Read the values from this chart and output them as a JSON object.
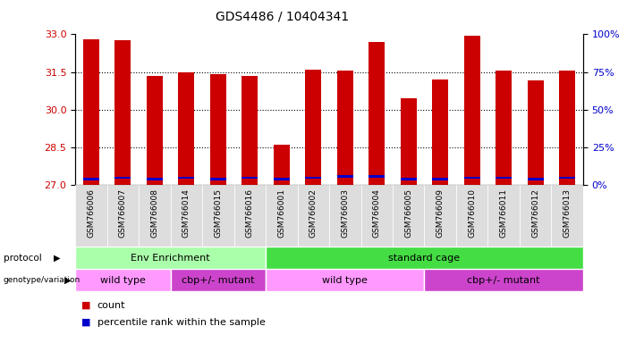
{
  "title": "GDS4486 / 10404341",
  "samples": [
    "GSM766006",
    "GSM766007",
    "GSM766008",
    "GSM766014",
    "GSM766015",
    "GSM766016",
    "GSM766001",
    "GSM766002",
    "GSM766003",
    "GSM766004",
    "GSM766005",
    "GSM766009",
    "GSM766010",
    "GSM766011",
    "GSM766012",
    "GSM766013"
  ],
  "red_values": [
    32.8,
    32.75,
    31.35,
    31.5,
    31.4,
    31.35,
    28.6,
    31.6,
    31.55,
    32.7,
    30.45,
    31.2,
    32.95,
    31.55,
    31.15,
    31.55
  ],
  "blue_values": [
    27.2,
    27.25,
    27.2,
    27.25,
    27.2,
    27.25,
    27.2,
    27.25,
    27.3,
    27.3,
    27.2,
    27.2,
    27.25,
    27.25,
    27.2,
    27.25
  ],
  "ymin": 27,
  "ymax": 33,
  "yticks": [
    27,
    28.5,
    30,
    31.5,
    33
  ],
  "y2ticks": [
    0,
    25,
    50,
    75,
    100
  ],
  "bar_color": "#cc0000",
  "blue_color": "#0000cc",
  "protocol_groups": [
    {
      "label": "Env Enrichment",
      "start": 0,
      "end": 6,
      "color": "#aaffaa"
    },
    {
      "label": "standard cage",
      "start": 6,
      "end": 16,
      "color": "#44dd44"
    }
  ],
  "genotype_groups": [
    {
      "label": "wild type",
      "start": 0,
      "end": 3,
      "color": "#ff99ff"
    },
    {
      "label": "cbp+/- mutant",
      "start": 3,
      "end": 6,
      "color": "#cc44cc"
    },
    {
      "label": "wild type",
      "start": 6,
      "end": 11,
      "color": "#ff99ff"
    },
    {
      "label": "cbp+/- mutant",
      "start": 11,
      "end": 16,
      "color": "#cc44cc"
    }
  ],
  "protocol_label": "protocol",
  "genotype_label": "genotype/variation",
  "legend_items": [
    {
      "label": "count",
      "color": "#cc0000"
    },
    {
      "label": "percentile rank within the sample",
      "color": "#0000cc"
    }
  ],
  "bar_width": 0.5,
  "background_color": "#ffffff",
  "tick_label_color_left": "#cc0000",
  "tick_label_color_right": "#0000cc",
  "sample_bg_color": "#dddddd"
}
